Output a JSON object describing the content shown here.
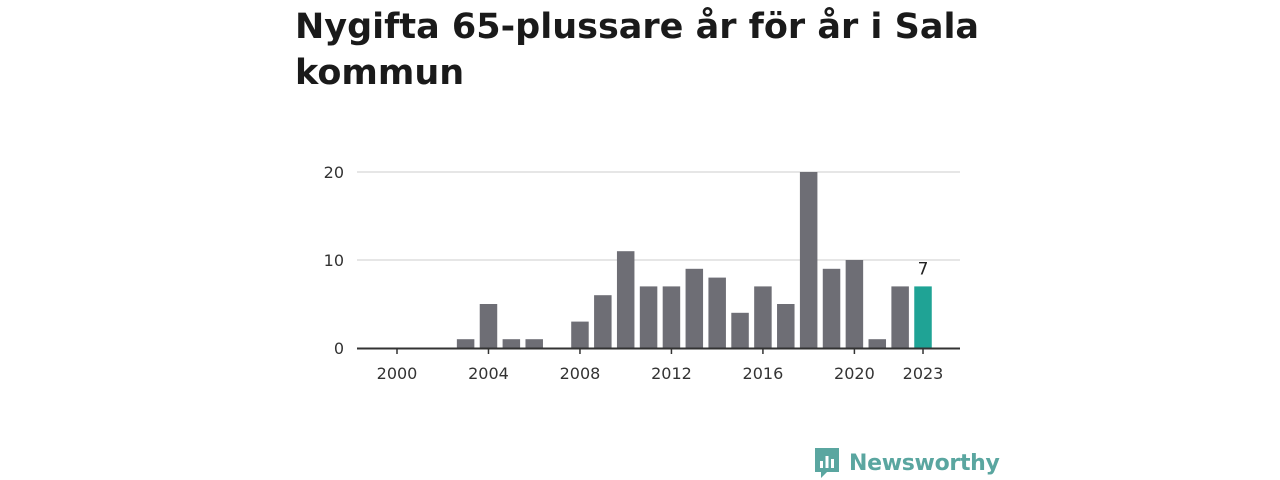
{
  "chart_data": {
    "type": "bar",
    "title": "Nygifta 65-plussare år för år i Sala kommun",
    "categories": [
      2000,
      2001,
      2002,
      2003,
      2004,
      2005,
      2006,
      2007,
      2008,
      2009,
      2010,
      2011,
      2012,
      2013,
      2014,
      2015,
      2016,
      2017,
      2018,
      2019,
      2020,
      2021,
      2022,
      2023
    ],
    "values": [
      0,
      0,
      0,
      1,
      5,
      1,
      1,
      0,
      3,
      6,
      11,
      7,
      7,
      9,
      8,
      4,
      7,
      5,
      20,
      9,
      10,
      1,
      7,
      7
    ],
    "x_ticks": [
      "2000",
      "2004",
      "2008",
      "2012",
      "2016",
      "2020",
      "2023"
    ],
    "y_ticks": [
      "0",
      "10",
      "20"
    ],
    "ylim": [
      0,
      20
    ],
    "grid": true,
    "highlight": {
      "category": 2023,
      "label": "7"
    },
    "colors": {
      "bar": "#6e6e75",
      "highlight": "#1fa395",
      "grid": "#dddddd",
      "axis": "#333333"
    }
  },
  "brand": {
    "name": "Newsworthy",
    "logo_icon": "newsworthy-bar-chart-icon",
    "color": "#5aa6a0"
  }
}
